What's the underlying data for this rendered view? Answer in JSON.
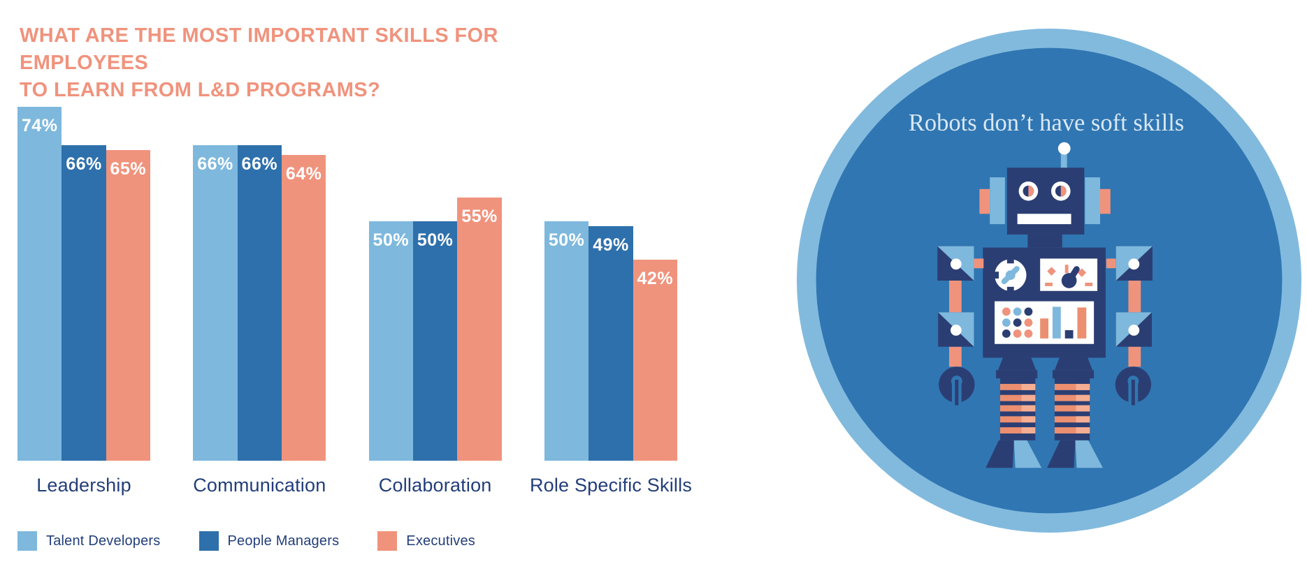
{
  "title": {
    "line1": "WHAT ARE THE MOST IMPORTANT SKILLS FOR EMPLOYEES",
    "line2": "TO LEARN FROM L&D PROGRAMS?"
  },
  "chart_data": {
    "type": "bar",
    "title": "What are the most important skills for employees to learn from L&D programs?",
    "categories": [
      "Leadership",
      "Communication",
      "Collaboration",
      "Role Specific Skills"
    ],
    "series": [
      {
        "name": "Talent Developers",
        "color": "#7EB8DD",
        "values": [
          74,
          66,
          50,
          50
        ]
      },
      {
        "name": "People Managers",
        "color": "#2E70AC",
        "values": [
          66,
          66,
          50,
          49
        ]
      },
      {
        "name": "Executives",
        "color": "#F0937D",
        "values": [
          65,
          64,
          55,
          42
        ]
      }
    ],
    "value_suffix": "%",
    "xlabel": "",
    "ylabel": "",
    "ylim": [
      0,
      100
    ],
    "grid": false,
    "bar_value_labels": "inside-top, white",
    "legend_position": "bottom-left"
  },
  "illustration": {
    "caption": "Robots don’t have soft skills"
  },
  "colors": {
    "coral": "#F0937D",
    "light_blue": "#7EB8DD",
    "dark_blue": "#2E70AC",
    "navy_text": "#223E7A",
    "robot_navy": "#2B3E73",
    "circle_ring": "#82BADE",
    "circle_inner": "#3076B2",
    "stripe_salmon": "#EC8F70",
    "stripe_salmon_light": "#F5AE93",
    "caption_text": "#D9E8F3",
    "background": "#FFFFFF"
  }
}
